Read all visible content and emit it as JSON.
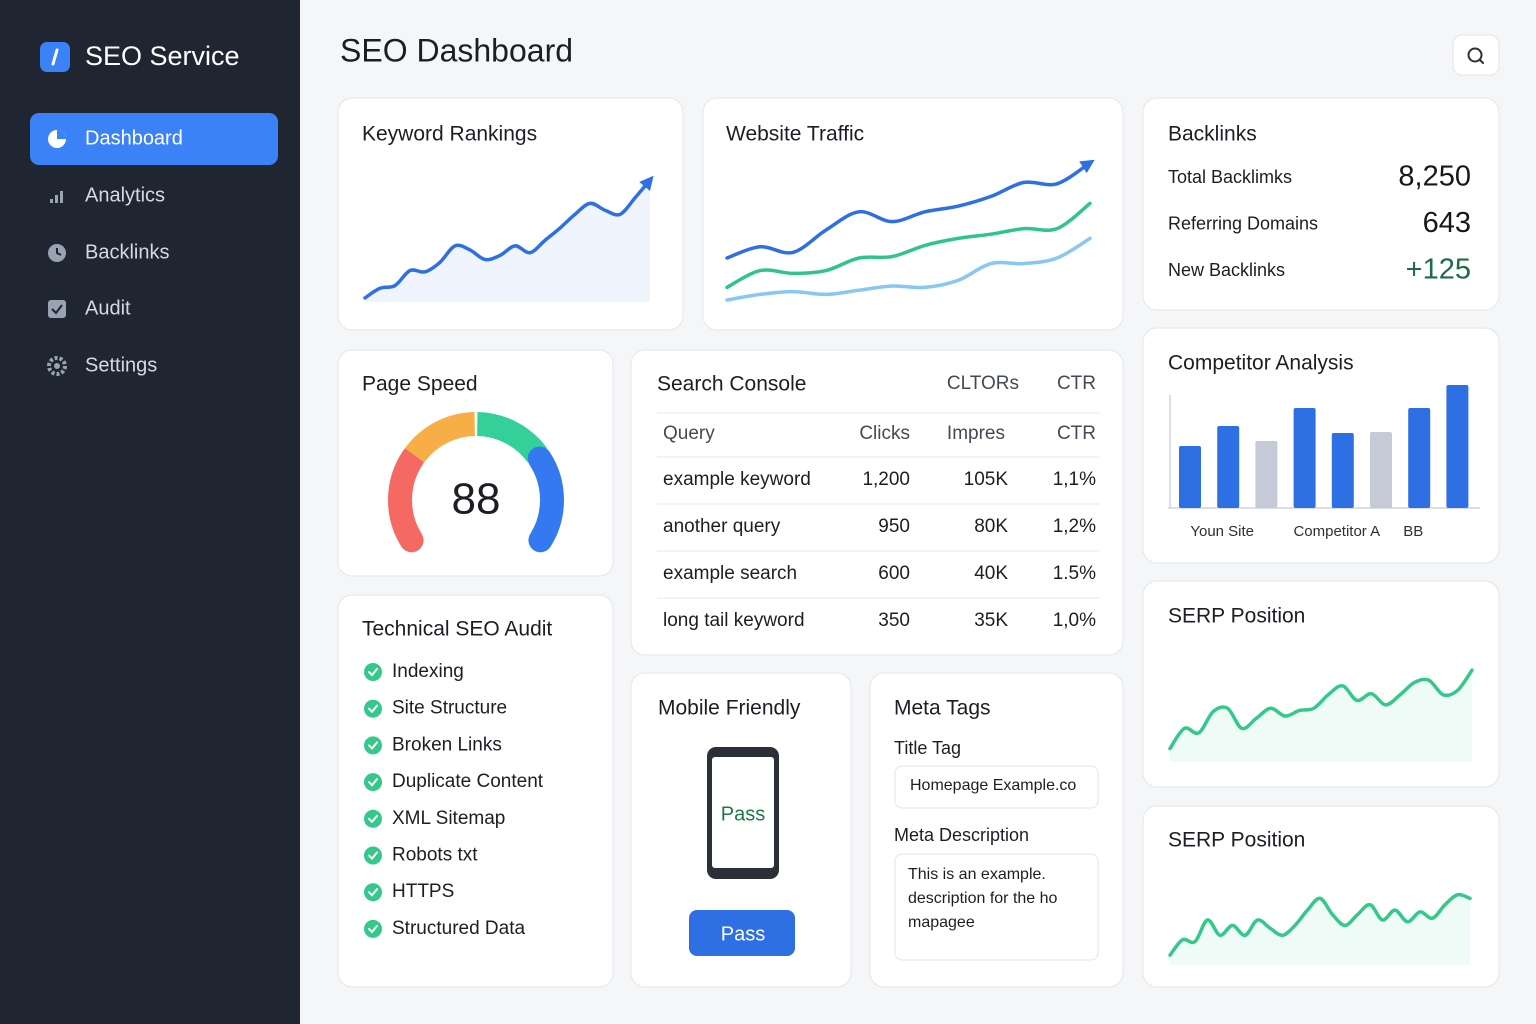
{
  "sidebar": {
    "brand": "SEO Service",
    "nav": [
      "Dashboard",
      "Analytics",
      "Backlinks",
      "Audit",
      "Settings"
    ]
  },
  "header": {
    "title": "SEO Dashboard"
  },
  "chart_data": [
    {
      "type": "line",
      "title": "Keyword Rankings",
      "color": "#2f6fe4",
      "area": true,
      "ylim": [
        0,
        100
      ],
      "values": [
        3,
        10,
        12,
        23,
        22,
        29,
        41,
        38,
        31,
        34,
        41,
        36,
        45,
        54,
        64,
        72,
        67,
        64,
        76,
        89
      ]
    },
    {
      "type": "line",
      "title": "Website Traffic",
      "ylim": [
        0,
        100
      ],
      "series": [
        {
          "color": "#2f6fe4",
          "values": [
            30,
            38,
            34,
            50,
            63,
            56,
            63,
            67,
            74,
            84,
            83,
            98
          ]
        },
        {
          "color": "#2fc48a",
          "values": [
            9,
            21,
            19,
            21,
            30,
            31,
            39,
            44,
            47,
            51,
            51,
            69
          ]
        },
        {
          "color": "#86c8f2",
          "values": [
            0,
            4,
            6,
            4,
            7,
            10,
            9,
            14,
            26,
            26,
            30,
            44
          ]
        }
      ]
    },
    {
      "type": "bar",
      "title": "Competitor Analysis",
      "ylim": [
        0,
        130
      ],
      "categories": [
        null,
        "Youn Site",
        null,
        null,
        "Competitor A",
        null,
        "BB",
        null
      ],
      "values": [
        62,
        82,
        67,
        100,
        75,
        76,
        100,
        123
      ],
      "colors": [
        "#2f6fe4",
        "#2f6fe4",
        "#c5cad6",
        "#2f6fe4",
        "#2f6fe4",
        "#c5cad6",
        "#2f6fe4",
        "#2f6fe4"
      ]
    },
    {
      "type": "line",
      "title": "SERP Position",
      "color": "#34c98b",
      "area": true,
      "ylim": [
        0,
        100
      ],
      "values": [
        12,
        30,
        26,
        45,
        48,
        30,
        39,
        48,
        41,
        46,
        48,
        60,
        68,
        55,
        61,
        51,
        60,
        71,
        73,
        60,
        64,
        82
      ]
    },
    {
      "type": "line",
      "title": "SERP Position",
      "color": "#34c98b",
      "area": true,
      "ylim": [
        0,
        100
      ],
      "values": [
        11,
        28,
        26,
        50,
        33,
        44,
        33,
        50,
        41,
        33,
        44,
        61,
        74,
        56,
        44,
        56,
        67,
        50,
        61,
        48,
        59,
        52,
        67,
        78,
        74
      ]
    }
  ],
  "backlinks": {
    "title": "Backlinks",
    "items": [
      {
        "label": "Total Backlimks",
        "value": "8,250"
      },
      {
        "label": "Referring Domains",
        "value": "643"
      },
      {
        "label": "New Backlinks",
        "value": "+125"
      }
    ]
  },
  "page_speed": {
    "title": "Page Speed",
    "score": 88
  },
  "search_console": {
    "title": "Search Console",
    "header_cols": [
      "CLTORs",
      "CTR"
    ],
    "columns": [
      "Query",
      "Clicks",
      "Impres",
      "CTR"
    ],
    "rows": [
      [
        "example keyword",
        "1,200",
        "105K",
        "1,1%"
      ],
      [
        "another query",
        "950",
        "80K",
        "1,2%"
      ],
      [
        "example search",
        "600",
        "40K",
        "1.5%"
      ],
      [
        "long tail keyword",
        "350",
        "35K",
        "1,0%"
      ]
    ]
  },
  "audit": {
    "title": "Technical SEO Audit",
    "items": [
      "Indexing",
      "Site Structure",
      "Broken Links",
      "Duplicate Content",
      "XML Sitemap",
      "Robots txt",
      "HTTPS",
      "Structured Data"
    ]
  },
  "mobile": {
    "title": "Mobile Friendly",
    "screen_status": "Pass",
    "button": "Pass"
  },
  "meta": {
    "title": "Meta Tags",
    "title_label": "Title Tag",
    "title_value": "Homepage Example.co",
    "description_label": "Meta Description",
    "description_lines": [
      "This is an example.",
      "description for the ho",
      "mapagee"
    ]
  }
}
